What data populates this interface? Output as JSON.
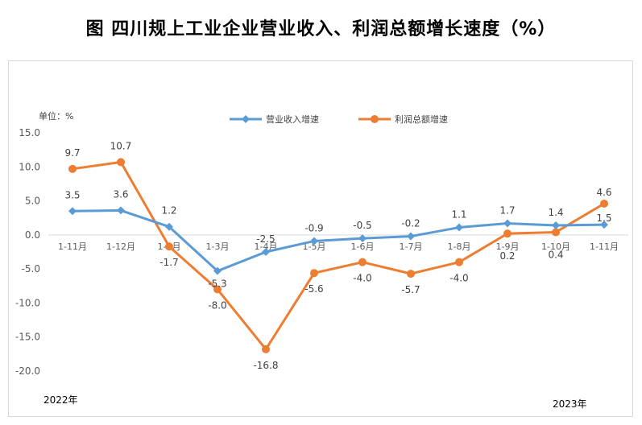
{
  "title": "图  四川规上工业企业营业收入、利润总额增长速度（%）",
  "unit_label": "单位：%",
  "year_start": "2022年",
  "year_end": "2023年",
  "colors": {
    "revenue": "#5b9bd5",
    "profit": "#ed7d31",
    "grid": "#d9d9d9"
  },
  "chart_data": {
    "type": "line",
    "categories": [
      "1-11月",
      "1-12月",
      "1-2月",
      "1-3月",
      "1-4月",
      "1-5月",
      "1-6月",
      "1-7月",
      "1-8月",
      "1-9月",
      "1-10月",
      "1-11月"
    ],
    "ylim": [
      -20,
      15
    ],
    "yticks": [
      15.0,
      10.0,
      5.0,
      0.0,
      -5.0,
      -10.0,
      -15.0,
      -20.0
    ],
    "ytick_labels": [
      "15.0",
      "10.0",
      "5.0",
      "0.0",
      "-5.0",
      "-10.0",
      "-15.0",
      "-20.0"
    ],
    "grid": false,
    "legend_position": "top",
    "series": [
      {
        "name": "营业收入增速",
        "marker": "diamond",
        "values": [
          3.5,
          3.6,
          1.2,
          -5.3,
          -2.5,
          -0.9,
          -0.5,
          -0.2,
          1.1,
          1.7,
          1.4,
          1.5
        ],
        "labels": [
          "3.5",
          "3.6",
          "1.2",
          "-5.3",
          "-2.5",
          "-0.9",
          "-0.5",
          "-0.2",
          "1.1",
          "1.7",
          "1.4",
          "1.5"
        ]
      },
      {
        "name": "利润总额增速",
        "marker": "circle",
        "values": [
          9.7,
          10.7,
          -1.7,
          -8.0,
          -16.8,
          -5.6,
          -4.0,
          -5.7,
          -4.0,
          0.2,
          0.4,
          4.6
        ],
        "labels": [
          "9.7",
          "10.7",
          "-1.7",
          "-8.0",
          "-16.8",
          "-5.6",
          "-4.0",
          "-5.7",
          "-4.0",
          "0.2",
          "0.4",
          "4.6"
        ]
      }
    ]
  }
}
